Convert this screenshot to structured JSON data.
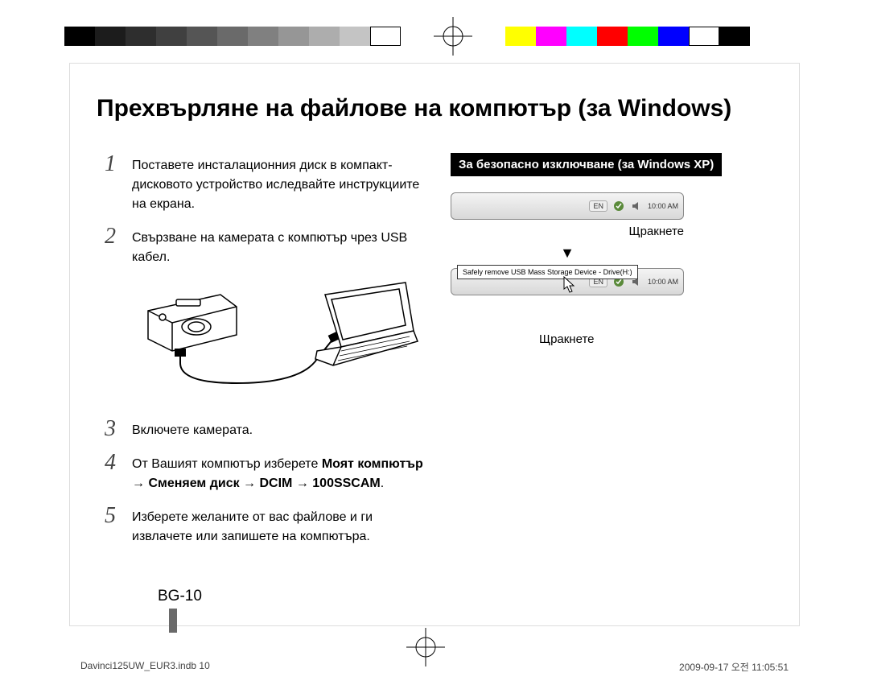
{
  "colorbar": {
    "left_swatches": [
      "#000000",
      "#1c1c1c",
      "#2e2e2e",
      "#404040",
      "#555555",
      "#6a6a6a",
      "#808080",
      "#969696",
      "#adadad",
      "#c4c4c4",
      "#ffffff"
    ],
    "right_swatches": [
      "#ffff00",
      "#ff00ff",
      "#00ffff",
      "#ff0000",
      "#00ff00",
      "#0000ff",
      "#ffffff",
      "#000000"
    ]
  },
  "title": "Прехвърляне на файлове на компютър (за Windows)",
  "steps": [
    {
      "num": "1",
      "text": "Поставете инсталационния диск в компакт-дисковото устройство иследвайте инструкциите на екрана."
    },
    {
      "num": "2",
      "text": "Свързване на камерата с компютър чрез USB кабел."
    },
    {
      "num": "3",
      "text": "Включете камерата."
    },
    {
      "num": "4",
      "text_pre": "От Вашият компютър изберете",
      "bold": "Моят компютър → Сменяем диск → DCIM → 100SSCAM",
      "text_post": "."
    },
    {
      "num": "5",
      "text": "Изберете желаните от вас файлове и ги извлачете или запишете на компютъра."
    }
  ],
  "safe_remove": {
    "heading": "За безопасно изключване (за Windows XP)",
    "click": "Щракнете",
    "taskbar": {
      "lang": "EN",
      "time": "10:00 AM"
    },
    "popup": "Safely remove USB Mass Storage Device - Drive(H:)"
  },
  "page_number": "BG-10",
  "footer": {
    "left": "Davinci125UW_EUR3.indb   10",
    "right": "2009-09-17   오전 11:05:51"
  }
}
